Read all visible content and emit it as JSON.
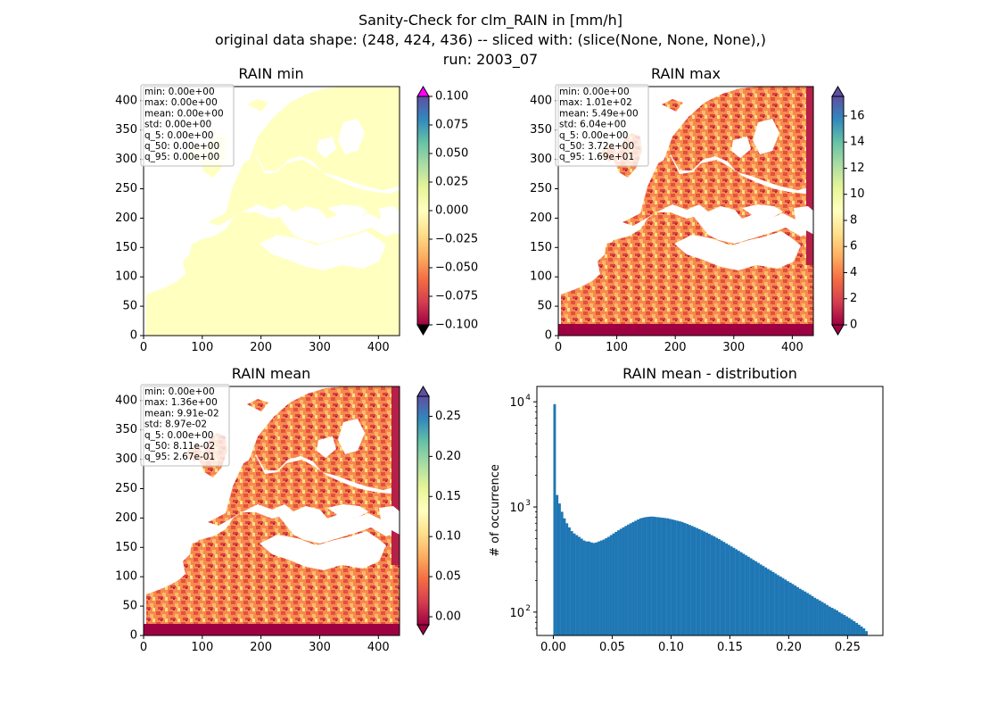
{
  "figure": {
    "suptitle_lines": [
      "Sanity-Check for clm_RAIN in [mm/h]",
      "original data shape: (248, 424, 436) -- sliced with: (slice(None, None, None),)",
      "run: 2003_07"
    ]
  },
  "chart_data": [
    {
      "type": "heatmap",
      "title": "RAIN min",
      "xlim": [
        0,
        436
      ],
      "ylim": [
        0,
        424
      ],
      "xticks": [
        0,
        100,
        200,
        300,
        400
      ],
      "yticks": [
        0,
        50,
        100,
        150,
        200,
        250,
        300,
        350,
        400
      ],
      "stats": [
        "min: 0.00e+00",
        "max: 0.00e+00",
        "mean: 0.00e+00",
        "std: 0.00e+00",
        "q_5: 0.00e+00",
        "q_50: 0.00e+00",
        "q_95: 0.00e+00"
      ],
      "colorbar": {
        "cmap": "Spectral",
        "range": [
          -0.1,
          0.1
        ],
        "ticks": [
          -0.1,
          -0.075,
          -0.05,
          -0.025,
          0.0,
          0.025,
          0.05,
          0.075,
          0.1
        ],
        "tick_labels": [
          "−0.100",
          "−0.075",
          "−0.050",
          "−0.025",
          "0.000",
          "0.025",
          "0.050",
          "0.075",
          "0.100"
        ],
        "extend": "both",
        "under_color": "#000000",
        "over_color": "#ff00ff"
      }
    },
    {
      "type": "heatmap",
      "title": "RAIN max",
      "xlim": [
        0,
        436
      ],
      "ylim": [
        0,
        424
      ],
      "xticks": [
        0,
        100,
        200,
        300,
        400
      ],
      "yticks": [
        0,
        50,
        100,
        150,
        200,
        250,
        300,
        350,
        400
      ],
      "stats": [
        "min: 0.00e+00",
        "max: 1.01e+02",
        "mean: 5.49e+00",
        "std: 6.04e+00",
        "q_5: 0.00e+00",
        "q_50: 3.72e+00",
        "q_95: 1.69e+01"
      ],
      "colorbar": {
        "cmap": "Spectral",
        "range": [
          0,
          17.5
        ],
        "ticks": [
          0,
          2,
          4,
          6,
          8,
          10,
          12,
          14,
          16
        ],
        "tick_labels": [
          "0",
          "2",
          "4",
          "6",
          "8",
          "10",
          "12",
          "14",
          "16"
        ],
        "extend": "both"
      }
    },
    {
      "type": "heatmap",
      "title": "RAIN mean",
      "xlim": [
        0,
        436
      ],
      "ylim": [
        0,
        424
      ],
      "xticks": [
        0,
        100,
        200,
        300,
        400
      ],
      "yticks": [
        0,
        50,
        100,
        150,
        200,
        250,
        300,
        350,
        400
      ],
      "stats": [
        "min: 0.00e+00",
        "max: 1.36e+00",
        "mean: 9.91e-02",
        "std: 8.97e-02",
        "q_5: 0.00e+00",
        "q_50: 8.11e-02",
        "q_95: 2.67e-01"
      ],
      "colorbar": {
        "cmap": "Spectral",
        "range": [
          -0.01,
          0.275
        ],
        "ticks": [
          0.0,
          0.05,
          0.1,
          0.15,
          0.2,
          0.25
        ],
        "tick_labels": [
          "0.00",
          "0.05",
          "0.10",
          "0.15",
          "0.20",
          "0.25"
        ],
        "extend": "both"
      }
    },
    {
      "type": "bar",
      "title": "RAIN mean - distribution",
      "ylabel": "# of occurrence",
      "yscale": "log",
      "xlim": [
        -0.014,
        0.28
      ],
      "ylim": [
        60,
        14000
      ],
      "xticks": [
        0.0,
        0.05,
        0.1,
        0.15,
        0.2,
        0.25
      ],
      "xtick_labels": [
        "0.00",
        "0.05",
        "0.10",
        "0.15",
        "0.20",
        "0.25"
      ],
      "yticks": [
        100,
        1000,
        10000
      ],
      "ytick_base": "10",
      "ytick_exponents": [
        "2",
        "3",
        "4"
      ],
      "bin_range": [
        0.0,
        0.267
      ],
      "bar_color": "#1f77b4",
      "counts": [
        9500,
        1300,
        1080,
        900,
        780,
        700,
        640,
        590,
        560,
        540,
        520,
        500,
        480,
        470,
        470,
        460,
        455,
        460,
        470,
        480,
        490,
        505,
        520,
        540,
        560,
        580,
        600,
        620,
        640,
        660,
        680,
        700,
        720,
        740,
        760,
        780,
        790,
        800,
        805,
        810,
        810,
        805,
        800,
        795,
        790,
        785,
        780,
        770,
        760,
        750,
        740,
        730,
        720,
        705,
        690,
        675,
        660,
        645,
        630,
        615,
        600,
        585,
        570,
        555,
        540,
        525,
        510,
        495,
        480,
        465,
        450,
        436,
        422,
        409,
        396,
        383,
        371,
        359,
        347,
        336,
        325,
        314,
        304,
        294,
        284,
        275,
        266,
        257,
        249,
        241,
        233,
        225,
        218,
        211,
        204,
        197,
        191,
        185,
        179,
        173,
        167,
        162,
        157,
        152,
        147,
        142,
        137,
        133,
        129,
        125,
        121,
        117,
        113,
        110,
        107,
        104,
        100,
        97,
        94,
        91,
        88,
        85,
        82,
        79,
        76,
        73,
        70,
        66
      ]
    }
  ]
}
